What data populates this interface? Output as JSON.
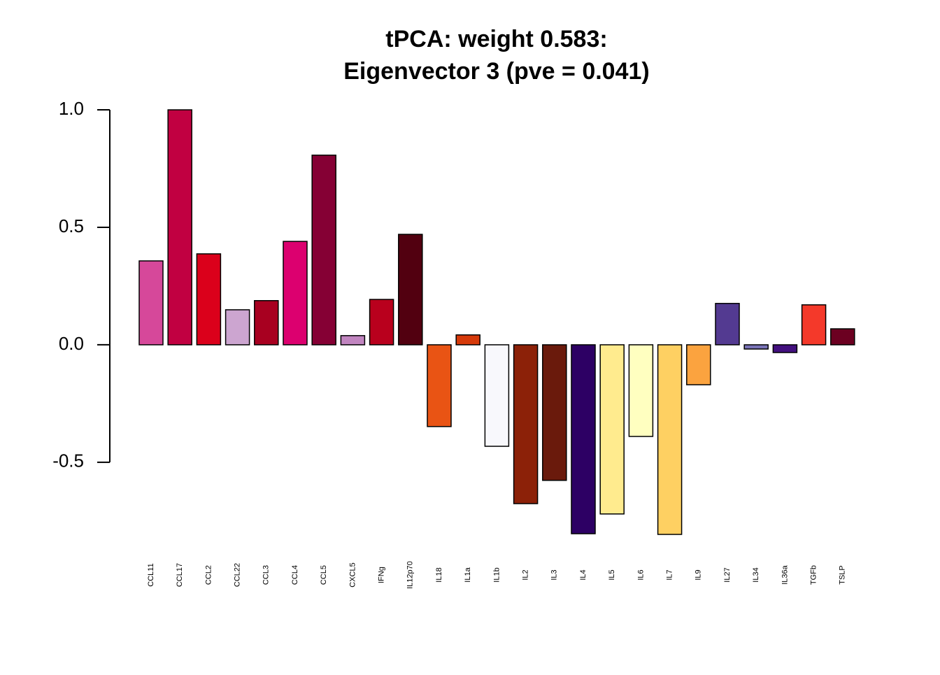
{
  "chart_data": {
    "type": "bar",
    "title": [
      "tPCA: weight 0.583:",
      "Eigenvector 3 (pve = 0.041)"
    ],
    "categories": [
      "CCL11",
      "CCL17",
      "CCL2",
      "CCL22",
      "CCL3",
      "CCL4",
      "CCL5",
      "CXCL5",
      "IFNg",
      "IL12p70",
      "IL18",
      "IL1a",
      "IL1b",
      "IL2",
      "IL3",
      "IL4",
      "IL5",
      "IL6",
      "IL7",
      "IL9",
      "IL27",
      "IL34",
      "IL36a",
      "TGFb",
      "TSLP"
    ],
    "values": [
      0.357,
      1.0,
      0.387,
      0.149,
      0.188,
      0.44,
      0.807,
      0.039,
      0.193,
      0.47,
      -0.348,
      0.042,
      -0.432,
      -0.676,
      -0.577,
      -0.804,
      -0.72,
      -0.39,
      -0.807,
      -0.17,
      0.176,
      -0.018,
      -0.033,
      0.17,
      0.068
    ],
    "colors": [
      "#d6489a",
      "#c10041",
      "#db001b",
      "#cca5d0",
      "#a80020",
      "#dc006f",
      "#850034",
      "#c185c0",
      "#b9001d",
      "#520010",
      "#e95414",
      "#d63a0a",
      "#f8f8fc",
      "#8c2108",
      "#6a1a0c",
      "#2d0064",
      "#ffeb8e",
      "#ffffc0",
      "#fed062",
      "#fba33f",
      "#533a91",
      "#7a74b8",
      "#43107f",
      "#f4392a",
      "#6c0021"
    ],
    "ylim": [
      -0.807,
      1.0
    ],
    "yticks": [
      -0.5,
      {
        "value": 0,
        "label": "0.0"
      },
      0.5,
      {
        "value": 1,
        "label": "1.0"
      }
    ]
  }
}
